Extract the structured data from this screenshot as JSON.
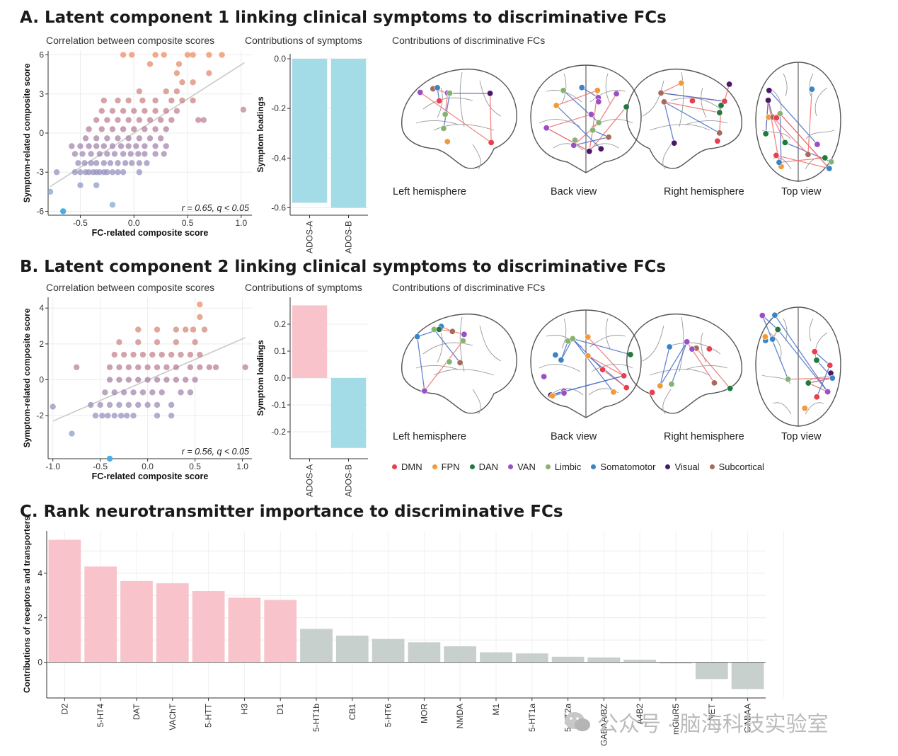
{
  "sections": {
    "a_title": "A. Latent component 1 linking clinical symptoms to discriminative FCs",
    "b_title": "B. Latent component 2 linking clinical symptoms to discriminative FCs",
    "c_title": "C. Rank neurotransmitter importance to discriminative FCs"
  },
  "subtitles": {
    "correlation": "Correlation between composite scores",
    "symptoms": "Contributions of symptoms",
    "fcs": "Contributions of discriminative FCs"
  },
  "views": [
    "Left hemisphere",
    "Back view",
    "Right hemisphere",
    "Top view"
  ],
  "legend": [
    {
      "label": "DMN",
      "color": "#e8404f"
    },
    {
      "label": "FPN",
      "color": "#f29a38"
    },
    {
      "label": "DAN",
      "color": "#1f7a3c"
    },
    {
      "label": "VAN",
      "color": "#9b4fc4"
    },
    {
      "label": "Limbic",
      "color": "#86b272"
    },
    {
      "label": "Somatomotor",
      "color": "#3b84c6"
    },
    {
      "label": "Visual",
      "color": "#4a1a6a"
    },
    {
      "label": "Subcortical",
      "color": "#a86a5a"
    }
  ],
  "watermark": "公众号 · 脑海科技实验室",
  "chart_data": [
    {
      "id": "A-scatter",
      "type": "scatter",
      "title": "Correlation between composite scores",
      "xlabel": "FC-related composite score",
      "ylabel": "Symptom-related composite score",
      "xlim": [
        -0.8,
        1.1
      ],
      "ylim": [
        -6.3,
        6.3
      ],
      "xticks": [
        -0.5,
        0.0,
        0.5,
        1.0
      ],
      "xtick_labels": [
        "-0.5",
        "0.0",
        "0.5",
        "1.0"
      ],
      "yticks": [
        -6,
        -3,
        0,
        3,
        6
      ],
      "ytick_labels": [
        "-6",
        "-3",
        "0",
        "3",
        "6"
      ],
      "annotation": "r = 0.65, q < 0.05",
      "fit_line": [
        [
          -0.78,
          -4.1
        ],
        [
          1.03,
          5.4
        ]
      ],
      "points": [
        [
          -0.66,
          -6
        ],
        [
          -0.78,
          -4.5
        ],
        [
          -0.2,
          -5.5
        ],
        [
          -0.72,
          -3
        ],
        [
          -0.5,
          -4
        ],
        [
          -0.35,
          -4
        ],
        [
          -0.55,
          -3
        ],
        [
          -0.5,
          -3
        ],
        [
          -0.45,
          -3
        ],
        [
          -0.42,
          -3
        ],
        [
          -0.38,
          -3
        ],
        [
          -0.35,
          -3
        ],
        [
          -0.32,
          -3
        ],
        [
          -0.28,
          -3
        ],
        [
          -0.25,
          -3
        ],
        [
          -0.2,
          -3
        ],
        [
          -0.15,
          -3
        ],
        [
          -0.1,
          -3
        ],
        [
          0.05,
          -3
        ],
        [
          -0.52,
          -2.3
        ],
        [
          -0.46,
          -2.3
        ],
        [
          -0.4,
          -2.3
        ],
        [
          -0.35,
          -2.3
        ],
        [
          -0.28,
          -2.3
        ],
        [
          -0.22,
          -2.3
        ],
        [
          -0.15,
          -2.3
        ],
        [
          -0.08,
          -2.3
        ],
        [
          -0.02,
          -2.3
        ],
        [
          0.05,
          -2.3
        ],
        [
          0.12,
          -2.3
        ],
        [
          -0.55,
          -1.6
        ],
        [
          -0.48,
          -1.6
        ],
        [
          -0.4,
          -1.6
        ],
        [
          -0.32,
          -1.6
        ],
        [
          -0.25,
          -1.6
        ],
        [
          -0.18,
          -1.6
        ],
        [
          -0.1,
          -1.6
        ],
        [
          -0.03,
          -1.6
        ],
        [
          0.04,
          -1.6
        ],
        [
          0.1,
          -1.6
        ],
        [
          0.2,
          -1.6
        ],
        [
          0.28,
          -1.6
        ],
        [
          -0.58,
          -1
        ],
        [
          -0.5,
          -1
        ],
        [
          -0.42,
          -1
        ],
        [
          -0.35,
          -1
        ],
        [
          -0.28,
          -1
        ],
        [
          -0.2,
          -1
        ],
        [
          -0.12,
          -1
        ],
        [
          -0.05,
          -1
        ],
        [
          0.02,
          -1
        ],
        [
          0.1,
          -1
        ],
        [
          0.2,
          -1
        ],
        [
          0.3,
          -1
        ],
        [
          -0.45,
          -0.4
        ],
        [
          -0.35,
          -0.4
        ],
        [
          -0.25,
          -0.4
        ],
        [
          -0.15,
          -0.4
        ],
        [
          -0.05,
          -0.4
        ],
        [
          0.05,
          -0.4
        ],
        [
          0.15,
          -0.4
        ],
        [
          0.25,
          -0.4
        ],
        [
          -0.42,
          0.3
        ],
        [
          -0.3,
          0.3
        ],
        [
          -0.2,
          0.3
        ],
        [
          -0.1,
          0.3
        ],
        [
          0.0,
          0.3
        ],
        [
          0.1,
          0.3
        ],
        [
          0.2,
          0.3
        ],
        [
          0.3,
          0.3
        ],
        [
          -0.35,
          1
        ],
        [
          -0.25,
          1
        ],
        [
          -0.15,
          1
        ],
        [
          -0.05,
          1
        ],
        [
          0.05,
          1
        ],
        [
          0.15,
          1
        ],
        [
          0.25,
          1
        ],
        [
          0.35,
          1
        ],
        [
          0.6,
          1
        ],
        [
          0.65,
          1
        ],
        [
          -0.3,
          1.7
        ],
        [
          -0.2,
          1.7
        ],
        [
          -0.1,
          1.7
        ],
        [
          0.0,
          1.7
        ],
        [
          0.1,
          1.7
        ],
        [
          0.2,
          1.7
        ],
        [
          0.3,
          1.7
        ],
        [
          0.4,
          1.7
        ],
        [
          1.02,
          1.8
        ],
        [
          -0.28,
          2.5
        ],
        [
          -0.15,
          2.5
        ],
        [
          -0.05,
          2.5
        ],
        [
          0.08,
          2.5
        ],
        [
          0.2,
          2.5
        ],
        [
          0.35,
          2.5
        ],
        [
          0.45,
          2.5
        ],
        [
          0.55,
          2.5
        ],
        [
          0.05,
          3.2
        ],
        [
          0.3,
          3.2
        ],
        [
          0.4,
          3.2
        ],
        [
          0.45,
          3.9
        ],
        [
          0.55,
          3.9
        ],
        [
          0.4,
          4.6
        ],
        [
          0.7,
          4.6
        ],
        [
          0.15,
          5.3
        ],
        [
          0.42,
          5.3
        ],
        [
          -0.1,
          6
        ],
        [
          -0.02,
          6
        ],
        [
          0.2,
          6
        ],
        [
          0.28,
          6
        ],
        [
          0.5,
          6
        ],
        [
          0.55,
          6
        ],
        [
          0.7,
          6
        ],
        [
          0.82,
          6
        ]
      ]
    },
    {
      "id": "A-bar",
      "type": "bar",
      "title": "Contributions of symptoms",
      "ylabel": "Symptom loadings",
      "categories": [
        "ADOS-A",
        "ADOS-B"
      ],
      "values": [
        -0.58,
        -0.6
      ],
      "ylim": [
        -0.63,
        0.02
      ],
      "yticks": [
        0.0,
        -0.2,
        -0.4,
        -0.6
      ],
      "ytick_labels": [
        "0.0",
        "-0.2",
        "-0.4",
        "-0.6"
      ],
      "colors": [
        "#a3dce6",
        "#a3dce6"
      ]
    },
    {
      "id": "B-scatter",
      "type": "scatter",
      "title": "Correlation between composite scores",
      "xlabel": "FC-related composite score",
      "ylabel": "Symptom-related composite score",
      "xlim": [
        -1.05,
        1.1
      ],
      "ylim": [
        -4.4,
        4.6
      ],
      "xticks": [
        -1.0,
        -0.5,
        0.0,
        0.5,
        1.0
      ],
      "xtick_labels": [
        "-1.0",
        "-0.5",
        "0.0",
        "0.5",
        "1.0"
      ],
      "yticks": [
        -2,
        0,
        2,
        4
      ],
      "ytick_labels": [
        "-2",
        "0",
        "2",
        "4"
      ],
      "annotation": "r = 0.56, q < 0.05",
      "fit_line": [
        [
          -1.0,
          -2.3
        ],
        [
          1.03,
          2.35
        ]
      ],
      "points": [
        [
          -0.4,
          -4.4
        ],
        [
          -0.8,
          -3
        ],
        [
          -1.0,
          -1.5
        ],
        [
          -0.55,
          -2
        ],
        [
          -0.48,
          -2
        ],
        [
          -0.42,
          -2
        ],
        [
          -0.35,
          -2
        ],
        [
          -0.28,
          -2
        ],
        [
          -0.22,
          -2
        ],
        [
          -0.15,
          -2
        ],
        [
          0.1,
          -2
        ],
        [
          0.25,
          -2
        ],
        [
          -0.6,
          -1.4
        ],
        [
          -0.5,
          -1.4
        ],
        [
          -0.4,
          -1.4
        ],
        [
          -0.3,
          -1.4
        ],
        [
          -0.2,
          -1.4
        ],
        [
          -0.1,
          -1.4
        ],
        [
          0.0,
          -1.4
        ],
        [
          0.1,
          -1.4
        ],
        [
          0.25,
          -1.4
        ],
        [
          -0.45,
          -0.7
        ],
        [
          -0.35,
          -0.7
        ],
        [
          -0.25,
          -0.7
        ],
        [
          -0.15,
          -0.7
        ],
        [
          -0.05,
          -0.7
        ],
        [
          0.05,
          -0.7
        ],
        [
          0.15,
          -0.7
        ],
        [
          0.35,
          -0.7
        ],
        [
          0.45,
          -0.7
        ],
        [
          -0.4,
          0
        ],
        [
          -0.3,
          0
        ],
        [
          -0.2,
          0
        ],
        [
          -0.1,
          0
        ],
        [
          0.0,
          0
        ],
        [
          0.1,
          0
        ],
        [
          0.2,
          0
        ],
        [
          0.3,
          0
        ],
        [
          0.4,
          0
        ],
        [
          0.5,
          0
        ],
        [
          -0.75,
          0.7
        ],
        [
          -0.4,
          0.7
        ],
        [
          -0.3,
          0.7
        ],
        [
          -0.2,
          0.7
        ],
        [
          -0.1,
          0.7
        ],
        [
          0.0,
          0.7
        ],
        [
          0.1,
          0.7
        ],
        [
          0.2,
          0.7
        ],
        [
          0.3,
          0.7
        ],
        [
          0.45,
          0.7
        ],
        [
          0.55,
          0.7
        ],
        [
          0.65,
          0.7
        ],
        [
          0.72,
          0.7
        ],
        [
          1.03,
          0.7
        ],
        [
          -0.35,
          1.4
        ],
        [
          -0.25,
          1.4
        ],
        [
          -0.15,
          1.4
        ],
        [
          -0.05,
          1.4
        ],
        [
          0.05,
          1.4
        ],
        [
          0.15,
          1.4
        ],
        [
          0.25,
          1.4
        ],
        [
          0.35,
          1.4
        ],
        [
          0.45,
          1.4
        ],
        [
          0.55,
          1.4
        ],
        [
          -0.3,
          2.1
        ],
        [
          -0.1,
          2.1
        ],
        [
          0.1,
          2.1
        ],
        [
          0.3,
          2.1
        ],
        [
          0.5,
          2.1
        ],
        [
          -0.1,
          2.8
        ],
        [
          0.1,
          2.8
        ],
        [
          0.3,
          2.8
        ],
        [
          0.4,
          2.8
        ],
        [
          0.48,
          2.8
        ],
        [
          0.6,
          2.8
        ],
        [
          0.55,
          3.5
        ],
        [
          0.55,
          4.2
        ]
      ]
    },
    {
      "id": "B-bar",
      "type": "bar",
      "title": "Contributions of symptoms",
      "ylabel": "Symptom loadings",
      "categories": [
        "ADOS-A",
        "ADOS-B"
      ],
      "values": [
        0.27,
        -0.26
      ],
      "ylim": [
        -0.3,
        0.3
      ],
      "yticks": [
        0.2,
        0.1,
        0.0,
        -0.1,
        -0.2
      ],
      "ytick_labels": [
        "0.2",
        "0.1",
        "0.0",
        "-0.1",
        "-0.2"
      ],
      "colors": [
        "#f8c3cb",
        "#a3dce6"
      ]
    },
    {
      "id": "C-bar",
      "type": "bar",
      "title": "Rank neurotransmitter importance to discriminative FCs",
      "ylabel": "Contributions of receptors and transporters",
      "categories": [
        "D2",
        "5-HT4",
        "DAT",
        "VAChT",
        "5-HTT",
        "H3",
        "D1",
        "5-HT1b",
        "CB1",
        "5-HT6",
        "MOR",
        "NMDA",
        "M1",
        "5-HT1a",
        "5-HT2a",
        "GABAA/BZ",
        "A4B2",
        "mGluR5",
        "NET",
        "GABAA"
      ],
      "values": [
        5.5,
        4.3,
        3.65,
        3.55,
        3.2,
        2.9,
        2.8,
        1.5,
        1.2,
        1.05,
        0.9,
        0.72,
        0.45,
        0.4,
        0.25,
        0.22,
        0.12,
        -0.05,
        -0.75,
        -1.2
      ],
      "ylim": [
        -1.6,
        5.9
      ],
      "yticks": [
        0,
        2,
        4
      ],
      "ytick_labels": [
        "0",
        "2",
        "4"
      ],
      "highlight_count": 7,
      "highlight_color": "#f8c3cb",
      "other_color": "#c7d0cc"
    }
  ]
}
